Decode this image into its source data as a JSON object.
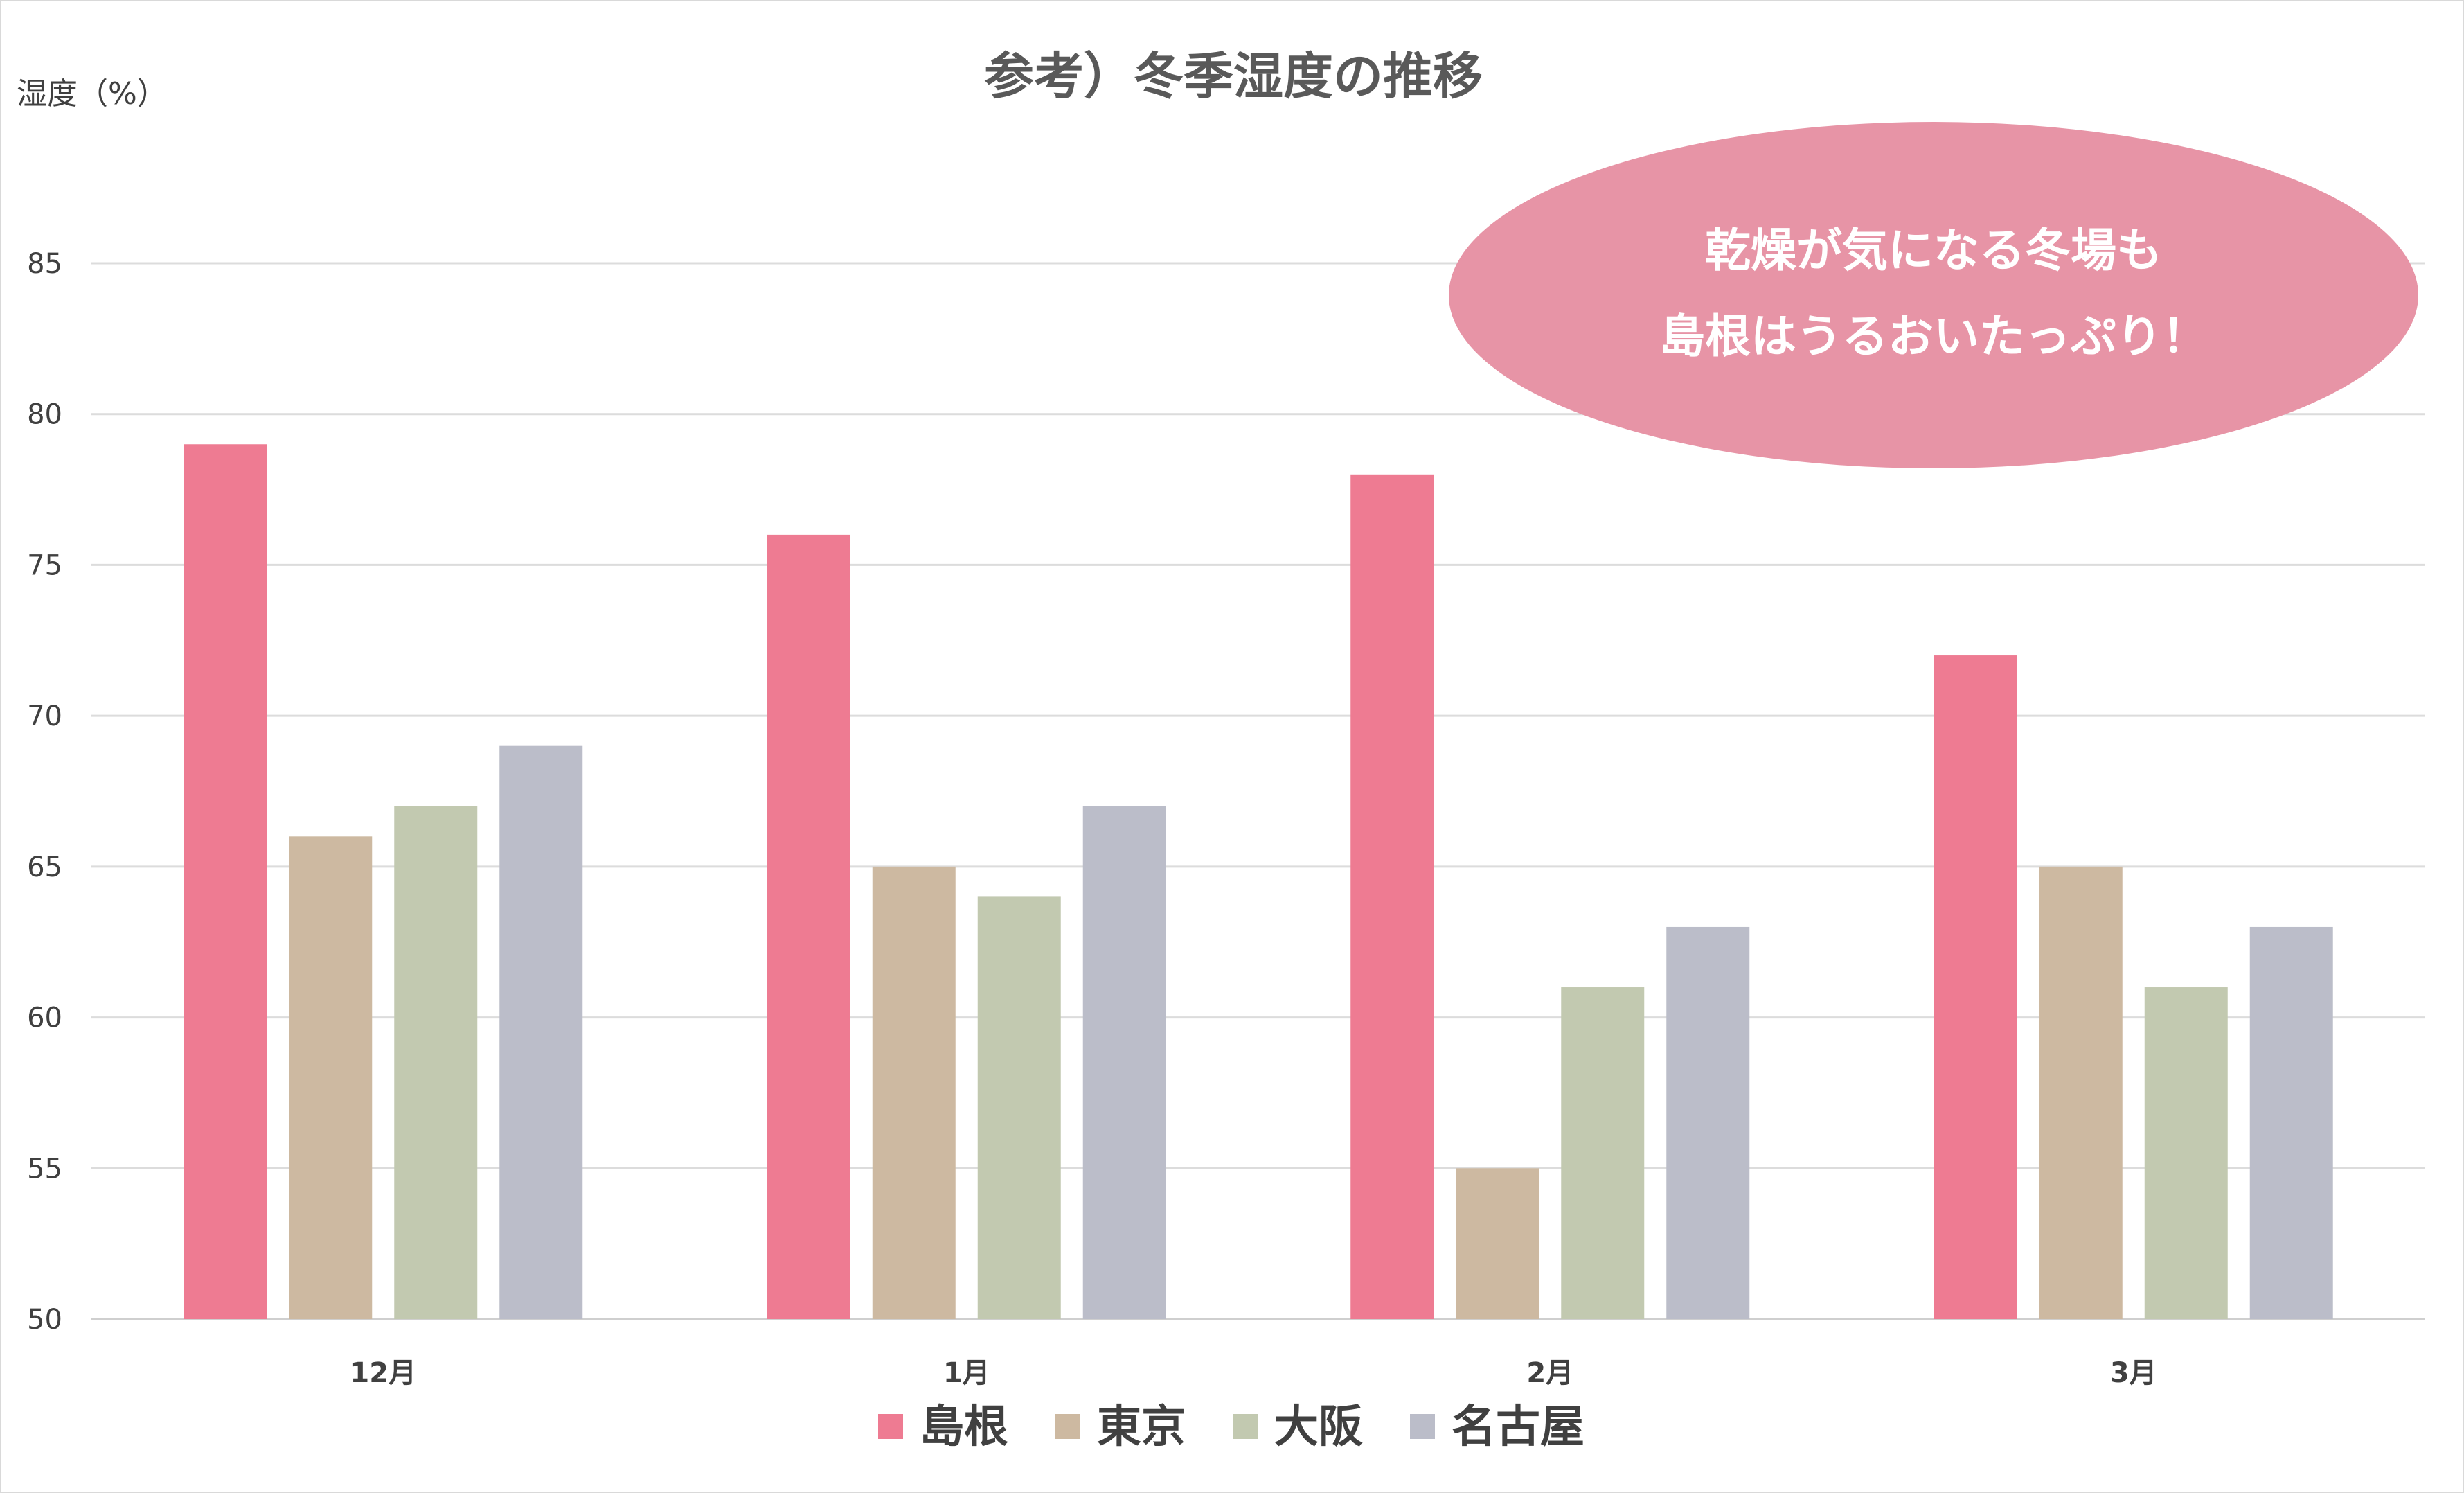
{
  "chart_data": {
    "type": "bar",
    "title": "参考）冬季湿度の推移",
    "ylabel": "湿度（%）",
    "xlabel": "",
    "categories": [
      "12月",
      "1月",
      "2月",
      "3月"
    ],
    "ylim": [
      50,
      85
    ],
    "yticks": [
      50,
      55,
      60,
      65,
      70,
      75,
      80,
      85
    ],
    "grid": true,
    "legend_position": "bottom",
    "series": [
      {
        "name": "島根",
        "color": "#ee7b92",
        "values": [
          79,
          76,
          78,
          72
        ]
      },
      {
        "name": "東京",
        "color": "#cdb9a1",
        "values": [
          66,
          65,
          55,
          65
        ]
      },
      {
        "name": "大阪",
        "color": "#c2c9b0",
        "values": [
          67,
          64,
          61,
          61
        ]
      },
      {
        "name": "名古屋",
        "color": "#bbbdc9",
        "values": [
          69,
          67,
          63,
          63
        ]
      }
    ],
    "annotation": {
      "lines": [
        "乾燥が気になる冬場も",
        "島根はうるおいたっぷり！"
      ],
      "color": "#e794a6"
    }
  }
}
